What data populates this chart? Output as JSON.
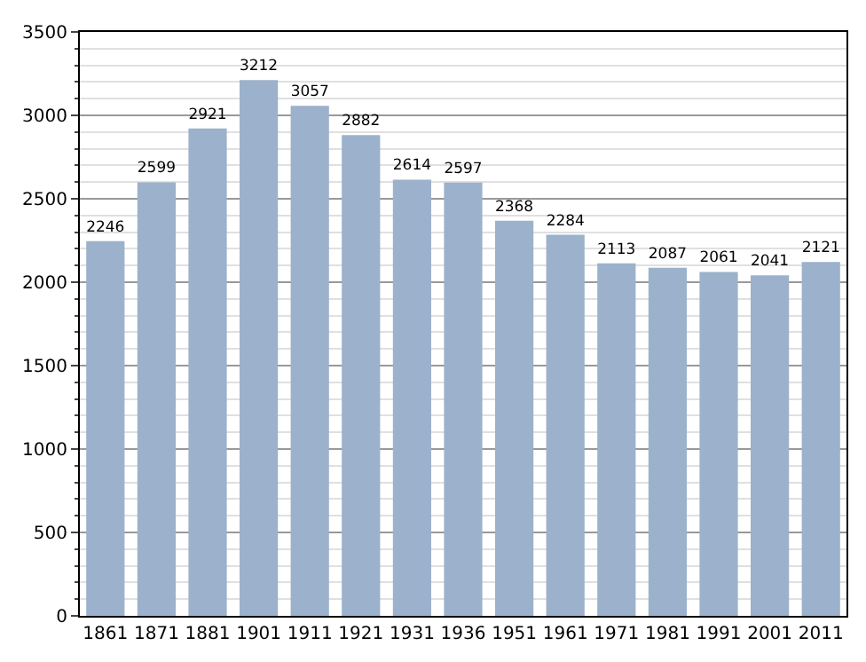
{
  "chart_data": {
    "type": "bar",
    "categories": [
      "1861",
      "1871",
      "1881",
      "1901",
      "1911",
      "1921",
      "1931",
      "1936",
      "1951",
      "1961",
      "1971",
      "1981",
      "1991",
      "2001",
      "2011"
    ],
    "values": [
      2246,
      2599,
      2921,
      3212,
      3057,
      2882,
      2614,
      2597,
      2368,
      2284,
      2113,
      2087,
      2061,
      2041,
      2121
    ],
    "color": "#9cb1cb",
    "ylim": [
      0,
      3500
    ],
    "yticks": [
      0,
      500,
      1000,
      1500,
      2000,
      2500,
      3000,
      3500
    ],
    "grid": "y",
    "data_labels": true
  }
}
